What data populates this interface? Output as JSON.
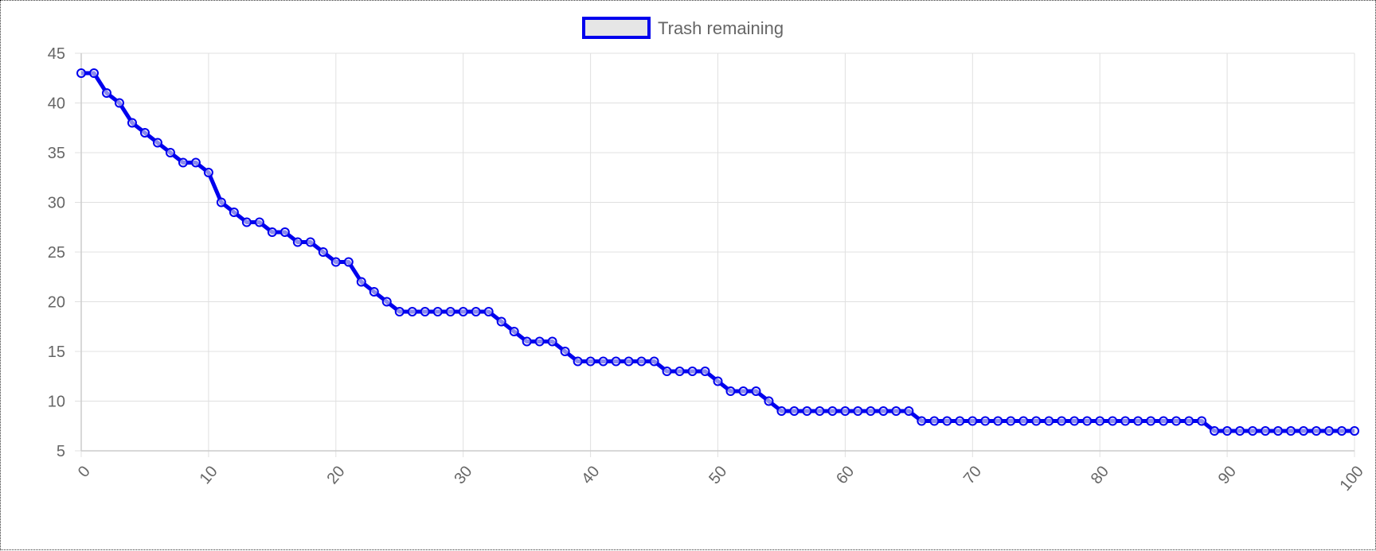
{
  "chart_data": {
    "type": "line",
    "legend": {
      "label": "Trash remaining",
      "position": "top-center"
    },
    "series": [
      {
        "name": "Trash remaining",
        "color": "#0000ee",
        "values": [
          43,
          43,
          41,
          40,
          38,
          37,
          36,
          35,
          34,
          34,
          33,
          30,
          29,
          28,
          28,
          27,
          27,
          26,
          26,
          25,
          24,
          24,
          22,
          21,
          20,
          19,
          19,
          19,
          19,
          19,
          19,
          19,
          19,
          18,
          17,
          16,
          16,
          16,
          15,
          14,
          14,
          14,
          14,
          14,
          14,
          14,
          13,
          13,
          13,
          13,
          12,
          11,
          11,
          11,
          10,
          9,
          9,
          9,
          9,
          9,
          9,
          9,
          9,
          9,
          9,
          9,
          8,
          8,
          8,
          8,
          8,
          8,
          8,
          8,
          8,
          8,
          8,
          8,
          8,
          8,
          8,
          8,
          8,
          8,
          8,
          8,
          8,
          8,
          8,
          7,
          7,
          7,
          7,
          7,
          7,
          7,
          7,
          7,
          7,
          7,
          7
        ]
      }
    ],
    "x": [
      0,
      1,
      2,
      3,
      4,
      5,
      6,
      7,
      8,
      9,
      10,
      11,
      12,
      13,
      14,
      15,
      16,
      17,
      18,
      19,
      20,
      21,
      22,
      23,
      24,
      25,
      26,
      27,
      28,
      29,
      30,
      31,
      32,
      33,
      34,
      35,
      36,
      37,
      38,
      39,
      40,
      41,
      42,
      43,
      44,
      45,
      46,
      47,
      48,
      49,
      50,
      51,
      52,
      53,
      54,
      55,
      56,
      57,
      58,
      59,
      60,
      61,
      62,
      63,
      64,
      65,
      66,
      67,
      68,
      69,
      70,
      71,
      72,
      73,
      74,
      75,
      76,
      77,
      78,
      79,
      80,
      81,
      82,
      83,
      84,
      85,
      86,
      87,
      88,
      89,
      90,
      91,
      92,
      93,
      94,
      95,
      96,
      97,
      98,
      99,
      100
    ],
    "xlim": [
      0,
      100
    ],
    "ylim": [
      5,
      45
    ],
    "xticks": [
      "0",
      "10",
      "20",
      "30",
      "40",
      "50",
      "60",
      "70",
      "80",
      "90",
      "100"
    ],
    "yticks": [
      "5",
      "10",
      "15",
      "20",
      "25",
      "30",
      "35",
      "40",
      "45"
    ],
    "xlabel": "",
    "ylabel": "",
    "grid": true
  }
}
